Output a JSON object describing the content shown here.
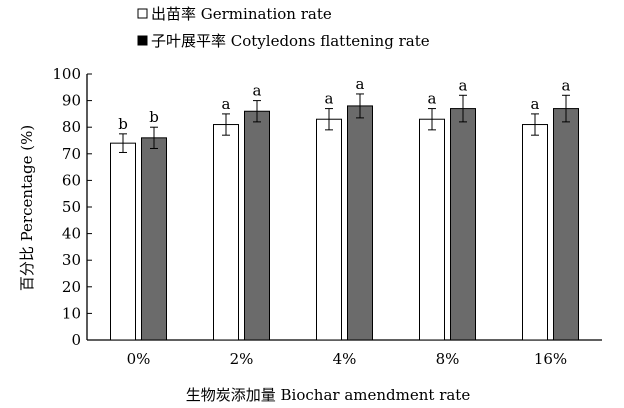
{
  "chart_data": {
    "type": "bar",
    "categories": [
      "0%",
      "2%",
      "4%",
      "8%",
      "16%"
    ],
    "series": [
      {
        "name": "出苗率 Germination rate",
        "values": [
          74,
          81,
          83,
          83,
          81
        ],
        "errors": [
          3.5,
          4,
          4,
          4,
          4
        ],
        "letters": [
          "b",
          "a",
          "a",
          "a",
          "a"
        ],
        "color": "#ffffff"
      },
      {
        "name": "子叶展平率 Cotyledons flattening rate",
        "values": [
          76,
          86,
          88,
          87,
          87
        ],
        "errors": [
          4,
          4,
          4.5,
          5,
          5
        ],
        "letters": [
          "b",
          "a",
          "a",
          "a",
          "a"
        ],
        "color": "#6b6b6b"
      }
    ],
    "xlabel": "生物炭添加量 Biochar amendment rate",
    "ylabel": "百分比 Percentage (%)",
    "ylim": [
      0,
      100
    ],
    "yticks": [
      "0",
      "10",
      "20",
      "30",
      "40",
      "50",
      "60",
      "70",
      "80",
      "90",
      "100"
    ],
    "legend_placement": "top-left",
    "grid": false
  }
}
